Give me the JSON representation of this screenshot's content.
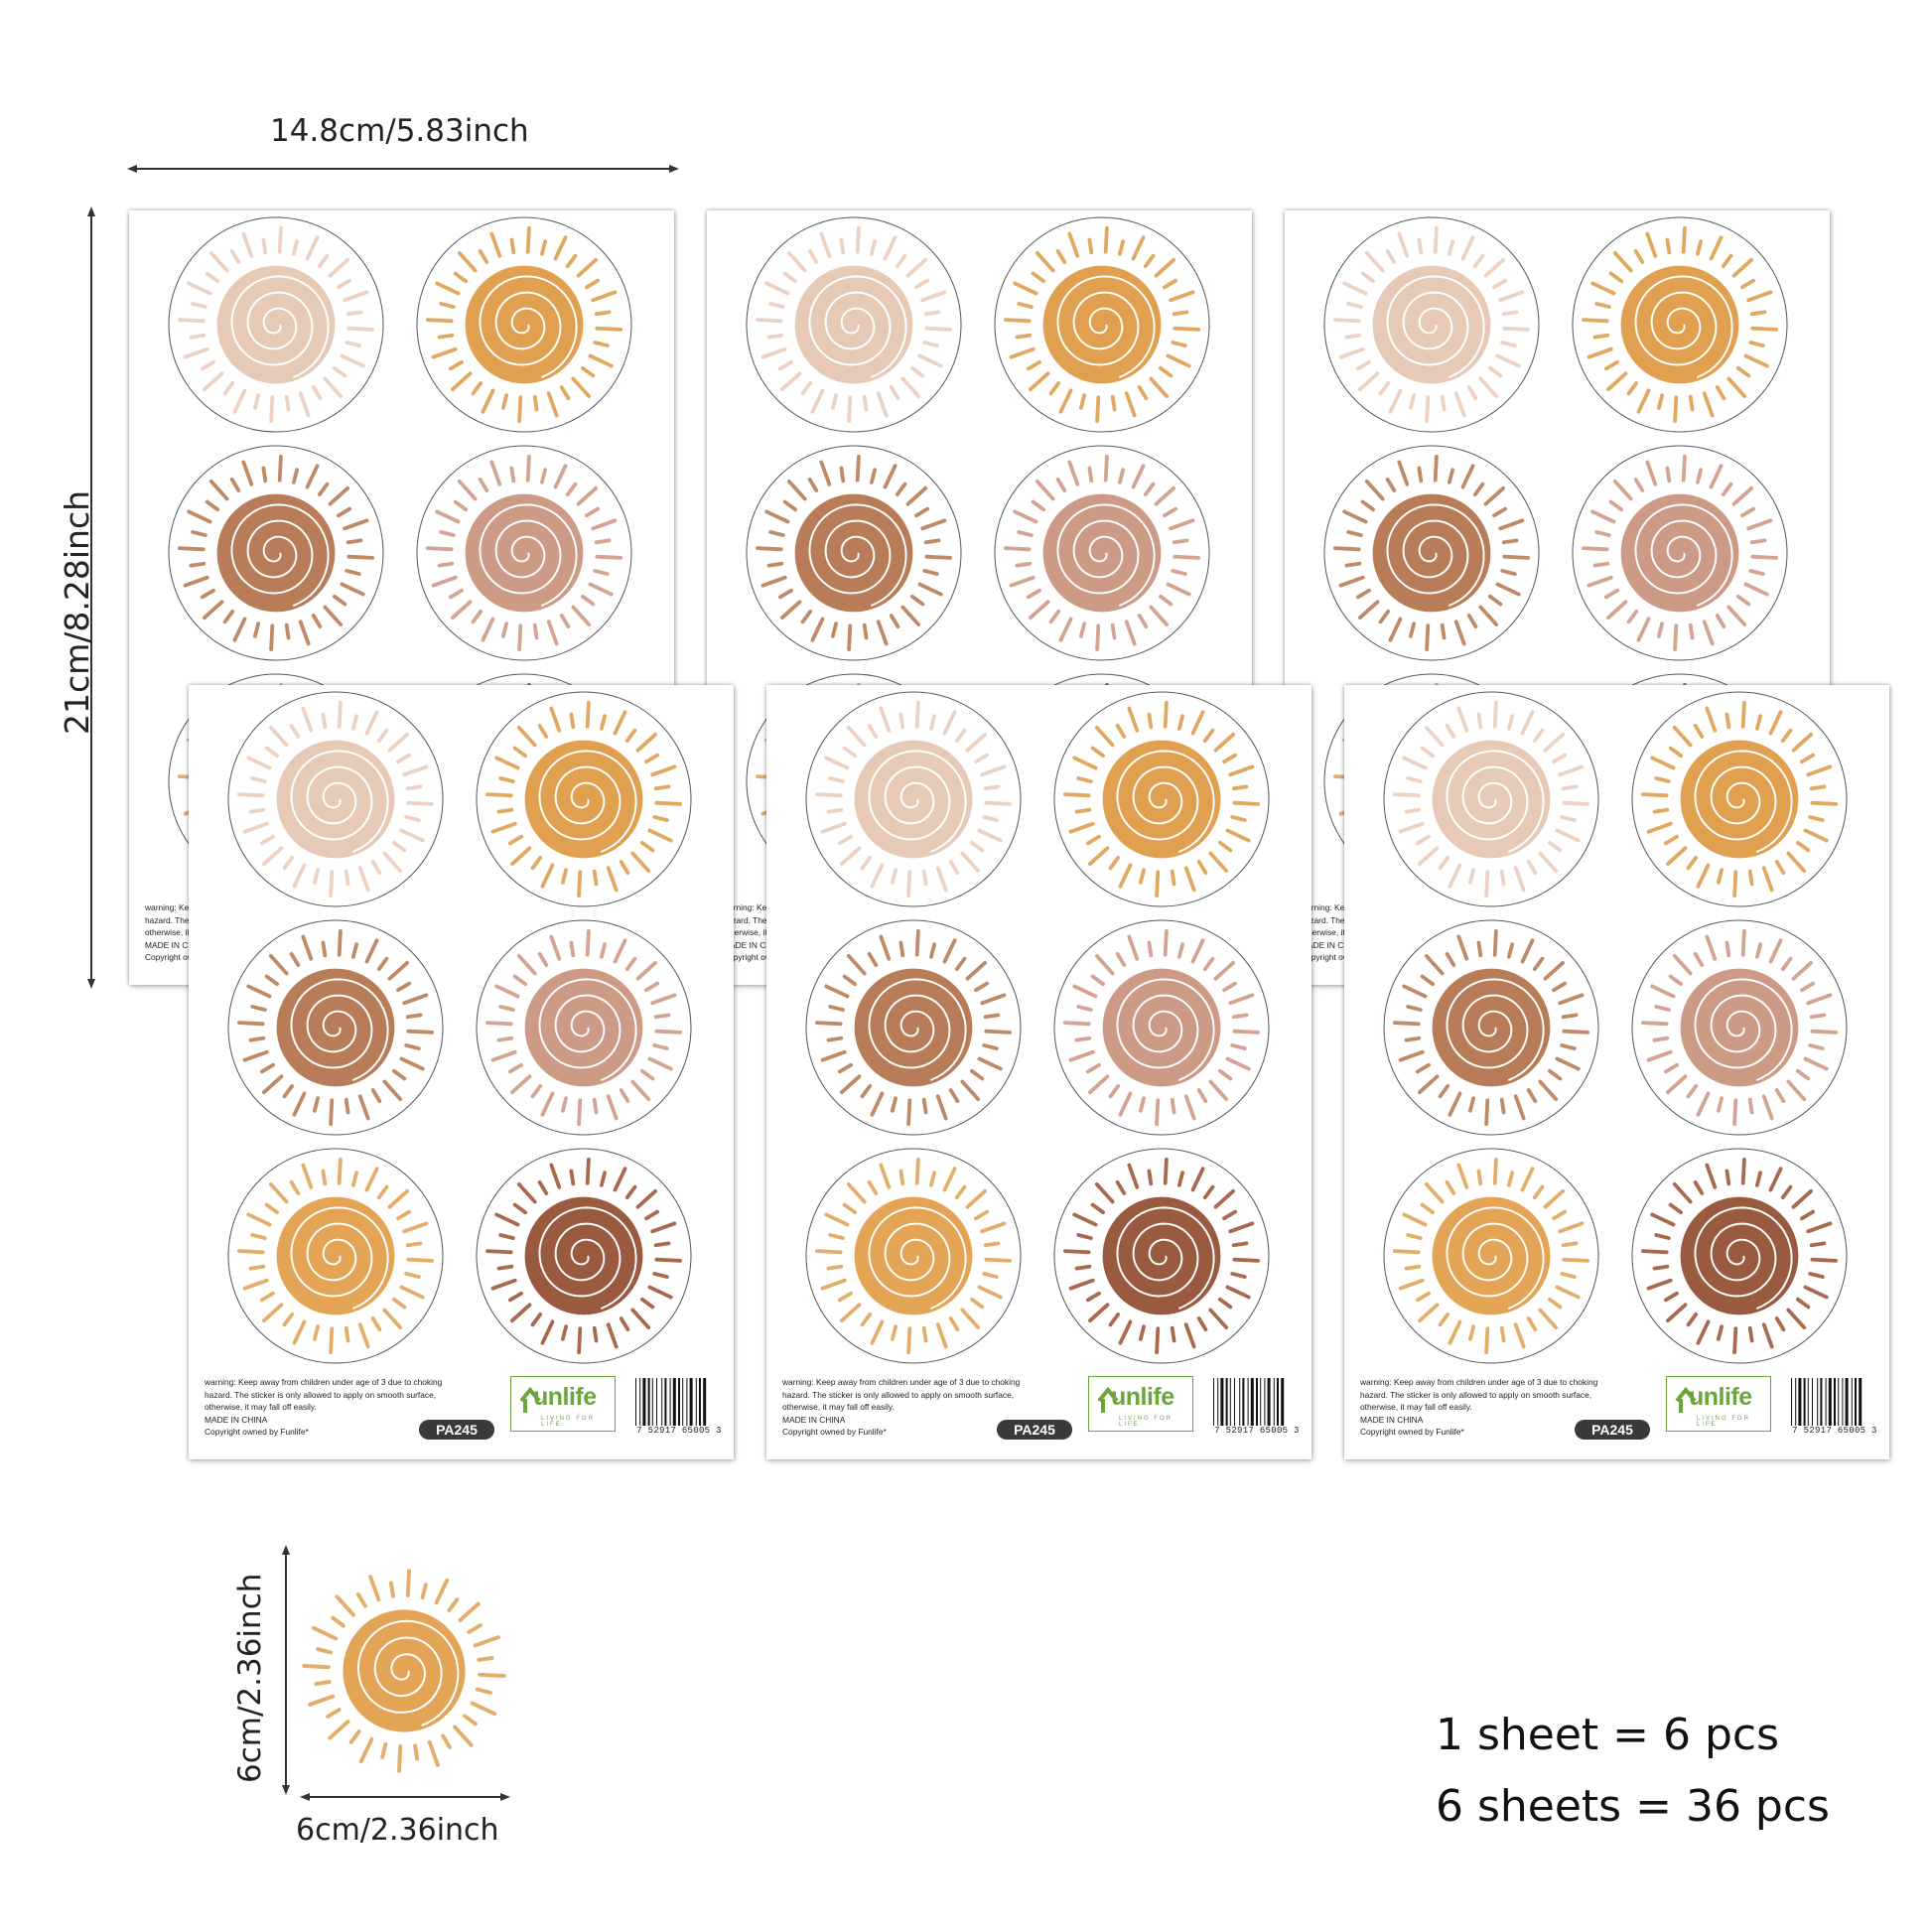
{
  "dimensions": {
    "sheet_width": "14.8cm/5.83inch",
    "sheet_height": "21cm/8.28inch",
    "sticker_height": "6cm/2.36inch",
    "sticker_width": "6cm/2.36inch"
  },
  "sheet": {
    "warning_lines": [
      "warning: Keep away from children under age of 3 due to choking",
      "hazard. The sticker is only allowed to apply on smooth surface,",
      "otherwise, it may fall off easily.",
      "MADE IN CHINA",
      "Copyright owned by Funlife*"
    ],
    "brand": "unlife",
    "brand_tagline": "LIVING FOR LIFE",
    "product_code": "PA245",
    "barcode_number": "7 52917 65005 3"
  },
  "stickers": [
    {
      "sun": "#e6c9b6",
      "rays": "#ebd2c2"
    },
    {
      "sun": "#e1a04f",
      "rays": "#e0a860"
    },
    {
      "sun": "#b97c58",
      "rays": "#bf8a66"
    },
    {
      "sun": "#cd9a85",
      "rays": "#d2a491"
    },
    {
      "sun": "#e3a455",
      "rays": "#e3ae6b"
    },
    {
      "sun": "#9a5a40",
      "rays": "#a9694f"
    }
  ],
  "summary": {
    "line1": "1 sheet = 6 pcs",
    "line2": "6 sheets = 36 pcs"
  }
}
